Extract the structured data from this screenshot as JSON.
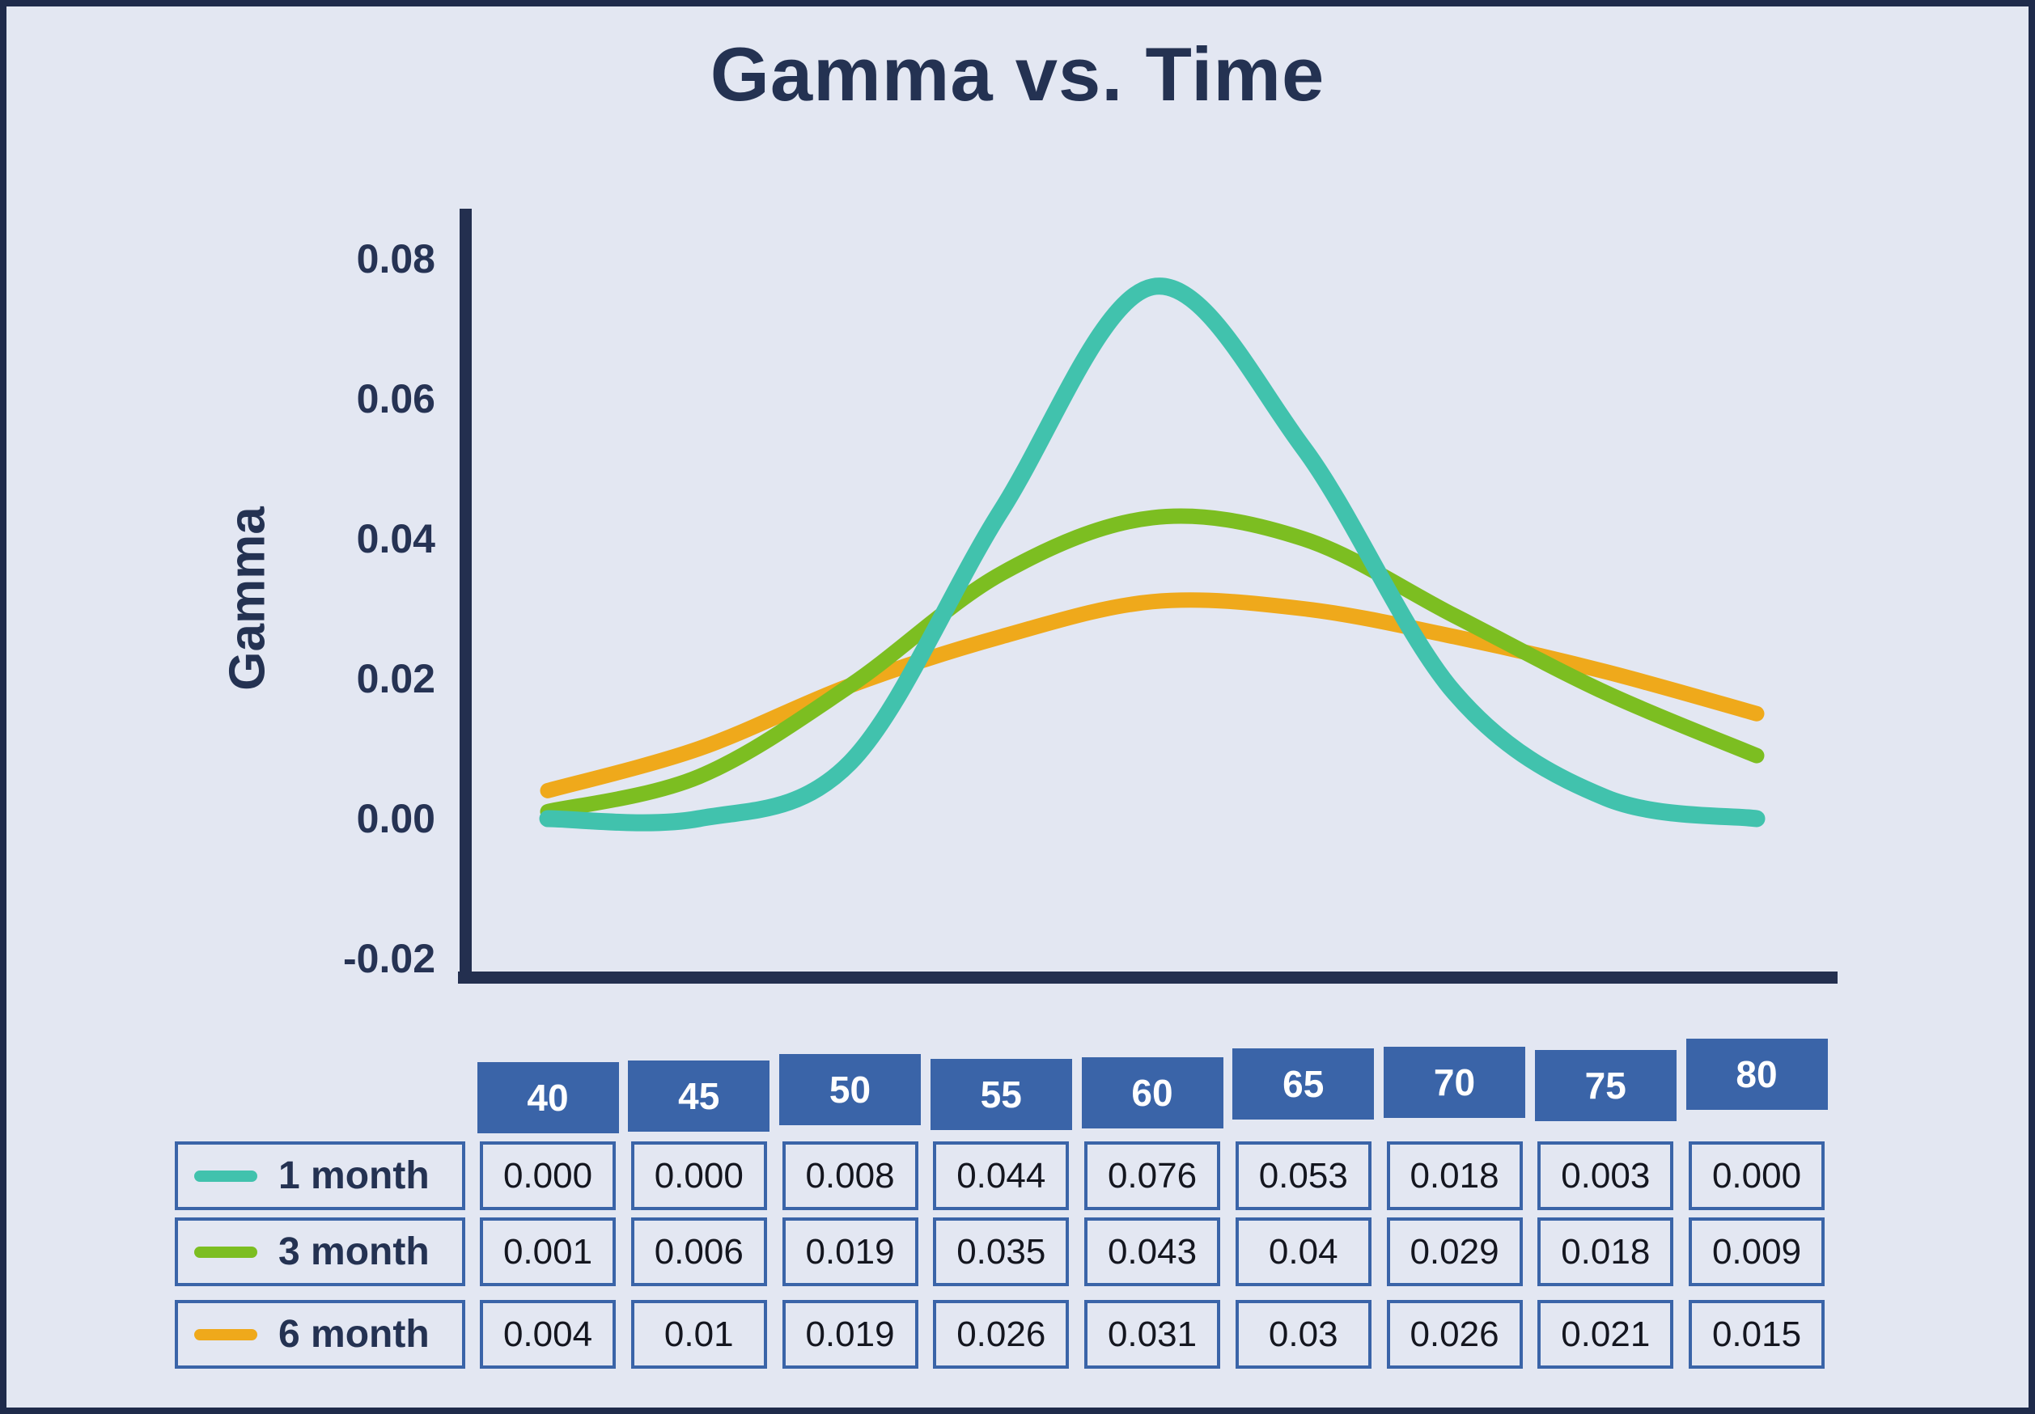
{
  "title": "Gamma vs. Time",
  "y_axis": {
    "label": "Gamma",
    "ticks": [
      {
        "label": "0.08",
        "value": 0.08
      },
      {
        "label": "0.06",
        "value": 0.06
      },
      {
        "label": "0.04",
        "value": 0.04
      },
      {
        "label": "0.02",
        "value": 0.02
      },
      {
        "label": "0.00",
        "value": 0.0
      },
      {
        "label": "-0.02",
        "value": -0.02
      }
    ]
  },
  "chart_data": {
    "type": "line",
    "title": "Gamma vs. Time",
    "xlabel": "",
    "ylabel": "Gamma",
    "x": [
      40,
      45,
      50,
      55,
      60,
      65,
      70,
      75,
      80
    ],
    "ylim": [
      -0.02,
      0.08
    ],
    "grid": false,
    "legend_position": "table-rows-below-left",
    "series": [
      {
        "name": "1 month",
        "color": "#41C2AD",
        "values": [
          0.0,
          0.0,
          0.008,
          0.044,
          0.076,
          0.053,
          0.018,
          0.003,
          0.0
        ]
      },
      {
        "name": "3 month",
        "color": "#7CBE21",
        "values": [
          0.001,
          0.006,
          0.019,
          0.035,
          0.043,
          0.04,
          0.029,
          0.018,
          0.009
        ]
      },
      {
        "name": "6 month",
        "color": "#EFA91B",
        "values": [
          0.004,
          0.01,
          0.019,
          0.026,
          0.031,
          0.03,
          0.026,
          0.021,
          0.015
        ]
      }
    ]
  },
  "table": {
    "columns": [
      "40",
      "45",
      "50",
      "55",
      "60",
      "65",
      "70",
      "75",
      "80"
    ],
    "rows": [
      {
        "label": "1 month",
        "swatch_color": "#41C2AD",
        "values": [
          "0.000",
          "0.000",
          "0.008",
          "0.044",
          "0.076",
          "0.053",
          "0.018",
          "0.003",
          "0.000"
        ]
      },
      {
        "label": "3 month",
        "swatch_color": "#7CBE21",
        "values": [
          "0.001",
          "0.006",
          "0.019",
          "0.035",
          "0.043",
          "0.04",
          "0.029",
          "0.018",
          "0.009"
        ]
      },
      {
        "label": "6 month",
        "swatch_color": "#EFA91B",
        "values": [
          "0.004",
          "0.01",
          "0.019",
          "0.026",
          "0.031",
          "0.03",
          "0.026",
          "0.021",
          "0.015"
        ]
      }
    ]
  },
  "colors": {
    "background": "#E3E7F2",
    "frame_border": "#1F2B4B",
    "axis": "#232F4F",
    "text_navy": "#243252",
    "table_header_bg": "#3A64A8",
    "table_border": "#3A64A8",
    "cell_text": "#14161F",
    "header_text": "#FFFFFF",
    "series_1_month": "#41C2AD",
    "series_3_month": "#7CBE21",
    "series_6_month": "#EFA91B"
  }
}
